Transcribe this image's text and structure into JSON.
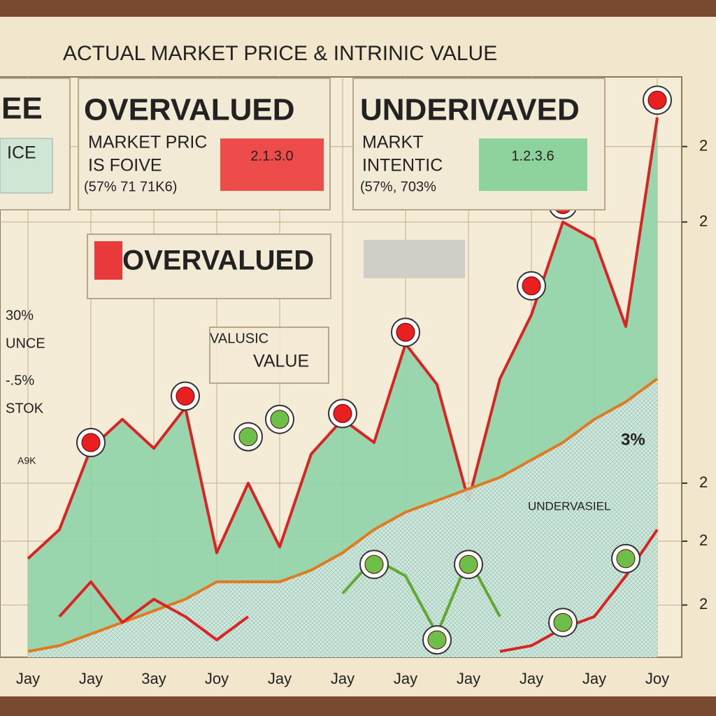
{
  "chart_data": {
    "type": "line",
    "title": "ACTUAL MARKET PRICE & INTRINIC VALUE",
    "categories": [
      "Jay",
      null,
      "Jay",
      null,
      "3ay",
      null,
      "Joy",
      null,
      "Jay",
      null,
      "Jay",
      null,
      "Jay",
      null,
      "Jay",
      null,
      "Jay",
      null,
      "Jay",
      null,
      "Joy"
    ],
    "series": [
      {
        "color": "#d92424",
        "fill": "#8fd4a8",
        "values": [
          17,
          22,
          36,
          41,
          36,
          43,
          18,
          30,
          19,
          35,
          41,
          37,
          54,
          47,
          27,
          48,
          59,
          75,
          72,
          57,
          93
        ]
      },
      {
        "color": "#e07a22",
        "fill": "#cfe6dc",
        "values": [
          1,
          2,
          4,
          6,
          8,
          10,
          13,
          13,
          13,
          15,
          18,
          22,
          25,
          27,
          29,
          31,
          34,
          37,
          41,
          44,
          48
        ]
      },
      {
        "color": "#d92424",
        "values": [
          null,
          7,
          13,
          6,
          10,
          7,
          3,
          7,
          null,
          null,
          null,
          null,
          null,
          null,
          null,
          1,
          2,
          5,
          7,
          14,
          22
        ]
      },
      {
        "color": "#5fa832",
        "values": [
          null,
          null,
          null,
          null,
          null,
          null,
          null,
          null,
          null,
          null,
          11,
          17,
          14,
          4,
          17,
          7,
          null,
          null,
          null,
          null,
          null
        ]
      },
      {
        "color": "#e82020",
        "marker": true,
        "values": [
          null,
          null,
          37,
          null,
          null,
          45,
          null,
          null,
          null,
          null,
          42,
          null,
          56,
          null,
          null,
          null,
          64,
          78,
          null,
          null,
          96
        ]
      },
      {
        "color": "#6cc04a",
        "marker": true,
        "values": [
          null,
          null,
          null,
          null,
          null,
          null,
          null,
          38,
          41,
          null,
          null,
          16,
          null,
          3,
          16,
          null,
          null,
          6,
          null,
          17,
          null
        ]
      }
    ],
    "ylim": [
      0,
      100
    ],
    "yticks": [
      {
        "value": 88,
        "label": "2"
      },
      {
        "value": 75,
        "label": "2"
      },
      {
        "value": 30,
        "label": "2"
      },
      {
        "value": 20,
        "label": "2"
      },
      {
        "value": 9,
        "label": "2"
      }
    ],
    "grid": true
  },
  "panels": {
    "left": {
      "head": "EE",
      "box": "ICE",
      "notes": [
        "30%",
        "UNCE",
        "-.5%",
        "STOK",
        "A9K"
      ]
    },
    "overvalued": {
      "title": "OVERVALUED",
      "lines": [
        "MARKET PRIC",
        "IS FOIVE",
        "(57% 71 71K6)"
      ],
      "badge": "2.1.3.0"
    },
    "undervalued": {
      "title": "UNDERIVAVED",
      "lines": [
        "MARKT",
        "INTENTIC",
        "(57%, 703%"
      ],
      "badge": "1.2.3.6"
    },
    "banner": "OVERVALUED",
    "value_box": [
      "VALUSIC",
      "VALUE"
    ],
    "annotations": [
      "3%",
      "UNDERVASIEL"
    ]
  }
}
